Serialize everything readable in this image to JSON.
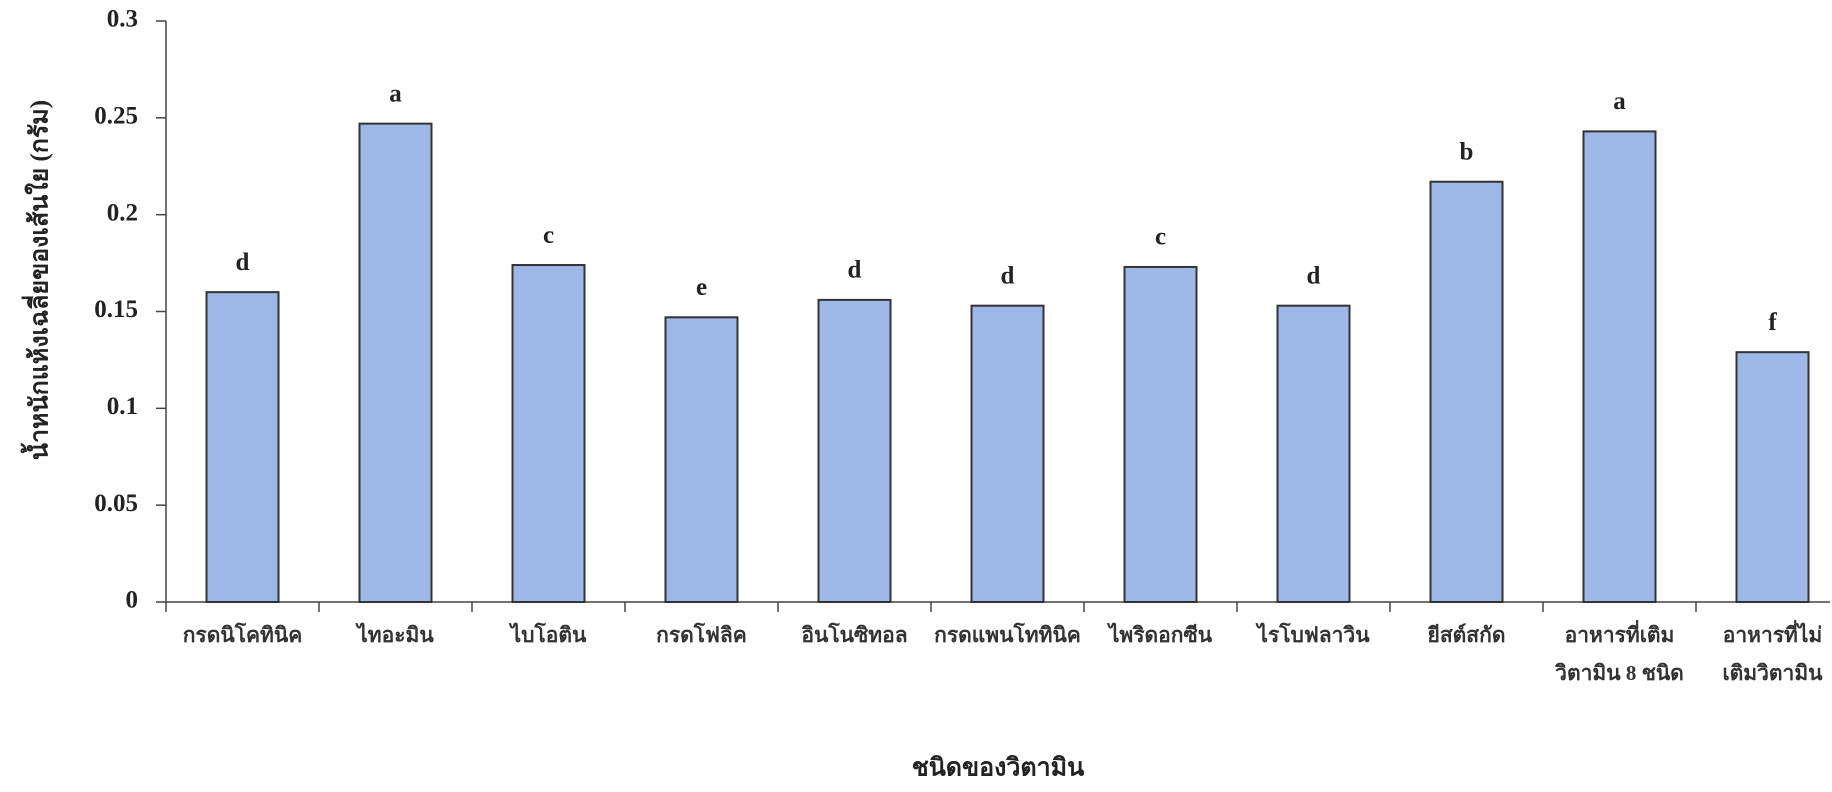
{
  "chart_data": {
    "type": "bar",
    "x_label": "ชนิดของวิตามิน",
    "y_label": "น้ำหนักแห้งเฉลี่ยของเส้นใย (กรัม)",
    "categories": [
      [
        "กรดนิโคทินิค"
      ],
      [
        "ไทอะมิน"
      ],
      [
        "ไบโอติน"
      ],
      [
        "กรดโฟลิค"
      ],
      [
        "อินโนซิทอล"
      ],
      [
        "กรดแพนโททินิค"
      ],
      [
        "ไพริดอกซีน"
      ],
      [
        "ไรโบฟลาวิน"
      ],
      [
        "ยีสต์สกัด"
      ],
      [
        "อาหารที่เติม",
        "วิตามิน 8 ชนิด"
      ],
      [
        "อาหารที่ไม่",
        "เติมวิตามิน"
      ]
    ],
    "values": [
      0.16,
      0.247,
      0.174,
      0.147,
      0.156,
      0.153,
      0.173,
      0.153,
      0.217,
      0.243,
      0.129
    ],
    "group_letters": [
      "d",
      "a",
      "c",
      "e",
      "d",
      "d",
      "c",
      "d",
      "b",
      "a",
      "f"
    ],
    "color": "#9db8e6",
    "ylim": [
      0,
      0.3
    ],
    "yticks": [
      0,
      0.05,
      0.1,
      0.15,
      0.2,
      0.25,
      0.3
    ],
    "grid": false
  }
}
